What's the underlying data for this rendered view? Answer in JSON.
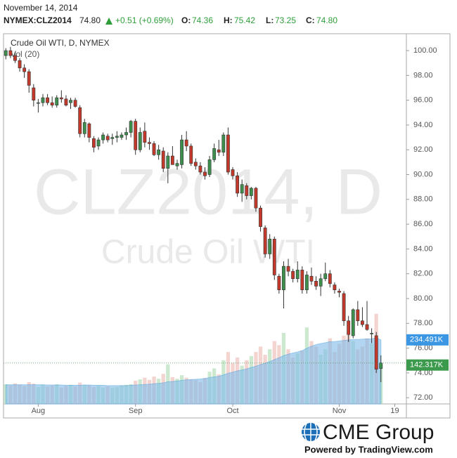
{
  "chart_data": {
    "type": "candlestick",
    "header": {
      "date": "November 14, 2014",
      "symbol": "NYMEX:CLZ2014",
      "last": "74.80",
      "change": "+0.51 (+0.69%)",
      "ohlc": [
        {
          "label": "O:",
          "value": "74.36"
        },
        {
          "label": "H:",
          "value": "75.42"
        },
        {
          "label": "L:",
          "value": "73.25"
        },
        {
          "label": "C:",
          "value": "74.80"
        }
      ],
      "value_color": "#2e9e3a"
    },
    "title": "Crude Oil WTI, D, NYMEX",
    "watermark": [
      "CLZ2014, D",
      "Crude Oil WTI"
    ],
    "logo": {
      "brand": "CME Group",
      "powered": "Powered by TradingView.com"
    },
    "categories": [
      null,
      null,
      null,
      null,
      null,
      null,
      null,
      "Aug",
      null,
      null,
      null,
      null,
      null,
      null,
      null,
      null,
      null,
      null,
      null,
      null,
      null,
      null,
      null,
      null,
      null,
      null,
      null,
      null,
      "Sep",
      null,
      null,
      null,
      null,
      null,
      null,
      null,
      null,
      null,
      null,
      null,
      null,
      null,
      null,
      null,
      null,
      null,
      null,
      null,
      null,
      "Oct",
      null,
      null,
      null,
      null,
      null,
      null,
      null,
      null,
      null,
      null,
      null,
      null,
      null,
      null,
      null,
      null,
      null,
      null,
      null,
      null,
      null,
      null,
      "Nov",
      null,
      null,
      null,
      null,
      null,
      null,
      null,
      null,
      null,
      null,
      null,
      "19",
      null,
      null
    ],
    "open": [
      99.6,
      100.0,
      99.6,
      99.2,
      98.6,
      98.3,
      97.0,
      95.8,
      95.8,
      96.2,
      95.8,
      95.6,
      96.2,
      96.1,
      95.8,
      96.0,
      95.4,
      93.3,
      94.1,
      92.9,
      92.3,
      92.8,
      93.1,
      92.9,
      93.0,
      93.0,
      93.2,
      93.4,
      94.3,
      92.0,
      93.5,
      92.6,
      92.5,
      91.6,
      91.9,
      90.5,
      91.5,
      90.7,
      90.8,
      92.8,
      92.3,
      91.0,
      90.7,
      90.2,
      90.0,
      91.2,
      92.0,
      91.8,
      93.2,
      90.4,
      89.9,
      88.5,
      89.1,
      88.3,
      88.9,
      87.3,
      85.7,
      83.6,
      84.8,
      81.8,
      80.7,
      82.6,
      82.2,
      81.6,
      82.3,
      80.7,
      81.8,
      81.4,
      81.0,
      81.6,
      82.0,
      81.1,
      80.6,
      80.4,
      78.2,
      77.0,
      79.1,
      78.2,
      77.9,
      77.2,
      77.0,
      74.36,
      null,
      null,
      null,
      null,
      null
    ],
    "high": [
      100.2,
      100.3,
      99.9,
      99.4,
      98.9,
      98.5,
      97.3,
      96.1,
      96.5,
      96.5,
      96.3,
      96.4,
      96.8,
      96.4,
      96.2,
      96.2,
      95.6,
      94.5,
      94.2,
      93.1,
      93.0,
      93.4,
      93.3,
      93.3,
      93.5,
      93.4,
      93.8,
      94.4,
      94.5,
      93.8,
      94.2,
      93.0,
      92.7,
      92.4,
      92.2,
      91.8,
      92.3,
      91.2,
      93.2,
      93.5,
      92.5,
      91.3,
      91.0,
      90.6,
      91.5,
      92.5,
      92.8,
      93.4,
      93.8,
      90.6,
      90.2,
      89.6,
      89.3,
      89.0,
      89.0,
      87.5,
      85.9,
      85.2,
      85.0,
      82.0,
      83.0,
      83.2,
      82.4,
      83.0,
      82.6,
      82.2,
      82.5,
      81.8,
      82.0,
      82.9,
      82.3,
      81.3,
      80.8,
      80.6,
      78.6,
      79.2,
      79.8,
      79.3,
      79.8,
      77.6,
      77.3,
      75.42,
      null,
      null,
      null,
      null,
      null
    ],
    "low": [
      99.3,
      99.4,
      99.0,
      98.3,
      97.8,
      96.6,
      95.5,
      95.0,
      95.5,
      95.6,
      95.4,
      95.4,
      95.8,
      95.5,
      95.3,
      95.4,
      93.0,
      93.0,
      92.6,
      91.8,
      92.0,
      92.5,
      92.6,
      92.4,
      92.6,
      92.8,
      92.8,
      93.0,
      91.6,
      91.8,
      92.2,
      92.0,
      91.5,
      91.2,
      90.2,
      89.3,
      90.8,
      90.4,
      90.5,
      91.9,
      90.7,
      90.4,
      90.0,
      89.6,
      89.8,
      91.0,
      91.5,
      91.5,
      90.0,
      89.6,
      88.2,
      87.8,
      88.0,
      88.0,
      87.0,
      85.4,
      83.3,
      83.2,
      81.5,
      80.4,
      79.2,
      81.8,
      81.3,
      81.3,
      80.4,
      80.4,
      81.1,
      80.7,
      80.2,
      81.4,
      80.9,
      80.4,
      80.1,
      77.8,
      76.5,
      76.8,
      77.8,
      77.7,
      77.4,
      76.4,
      74.0,
      73.25,
      null,
      null,
      null,
      null,
      null
    ],
    "close": [
      100.0,
      99.6,
      99.2,
      98.6,
      98.3,
      97.2,
      96.0,
      95.8,
      96.2,
      95.8,
      95.6,
      96.2,
      96.1,
      95.6,
      96.0,
      95.5,
      93.3,
      94.2,
      93.0,
      92.2,
      92.8,
      93.2,
      92.8,
      93.0,
      93.1,
      93.2,
      93.4,
      94.3,
      92.0,
      93.4,
      92.6,
      92.5,
      91.6,
      92.0,
      90.5,
      91.5,
      90.8,
      90.9,
      92.8,
      92.3,
      90.9,
      90.7,
      90.2,
      89.9,
      91.2,
      92.1,
      91.8,
      93.2,
      90.2,
      89.9,
      88.5,
      89.2,
      88.3,
      88.9,
      87.3,
      85.8,
      83.6,
      84.8,
      81.9,
      80.7,
      82.6,
      82.2,
      81.6,
      82.3,
      80.7,
      81.9,
      81.4,
      81.0,
      81.6,
      82.0,
      81.2,
      80.7,
      80.5,
      78.2,
      77.1,
      79.1,
      78.2,
      77.9,
      77.5,
      77.2,
      74.3,
      74.8,
      null,
      null,
      null,
      null,
      null
    ],
    "up_color": "#3d8f4e",
    "down_color": "#c2392b",
    "ylim": [
      71.5,
      101.25
    ],
    "yticks": [
      {
        "value": 72,
        "label": "72.00"
      },
      {
        "value": 74,
        "label": "74.00"
      },
      {
        "value": 76,
        "label": "76.00"
      },
      {
        "value": 78,
        "label": "78.00"
      },
      {
        "value": 80,
        "label": "80.00"
      },
      {
        "value": 82,
        "label": "82.00"
      },
      {
        "value": 84,
        "label": "84.00"
      },
      {
        "value": 86,
        "label": "86.00"
      },
      {
        "value": 88,
        "label": "88.00"
      },
      {
        "value": 90,
        "label": "90.00"
      },
      {
        "value": 92,
        "label": "92.00"
      },
      {
        "value": 94,
        "label": "94.00"
      },
      {
        "value": 96,
        "label": "96.00"
      },
      {
        "value": 98,
        "label": "98.00"
      },
      {
        "value": 100,
        "label": "100.00"
      }
    ],
    "volume": {
      "name": "Vol (20)",
      "ylim": [
        0,
        1350
      ],
      "up_color": "#bfe3c3",
      "down_color": "#f0c9c4",
      "ma_color": "#7fbbe9",
      "values": [
        72,
        68,
        75,
        70,
        66,
        80,
        74,
        62,
        70,
        64,
        68,
        72,
        60,
        66,
        70,
        64,
        78,
        70,
        68,
        62,
        66,
        60,
        64,
        58,
        62,
        68,
        70,
        72,
        85,
        90,
        96,
        88,
        100,
        92,
        110,
        145,
        98,
        92,
        105,
        96,
        90,
        88,
        80,
        95,
        118,
        130,
        108,
        160,
        190,
        150,
        170,
        140,
        160,
        175,
        190,
        210,
        180,
        200,
        230,
        215,
        260,
        200,
        170,
        185,
        195,
        280,
        230,
        210,
        180,
        200,
        240,
        190,
        220,
        250,
        260,
        230,
        200,
        210,
        240,
        220,
        330,
        142.317,
        null,
        null,
        null,
        null,
        null
      ],
      "ma": [
        70,
        70,
        70,
        70,
        70,
        70,
        70,
        70,
        70,
        69,
        69,
        69,
        69,
        68,
        68,
        68,
        68,
        69,
        69,
        68,
        68,
        68,
        67,
        67,
        67,
        67,
        67,
        68,
        69,
        70,
        71,
        72,
        74,
        75,
        77,
        81,
        82,
        84,
        86,
        88,
        89,
        90,
        91,
        93,
        96,
        99,
        101,
        106,
        112,
        116,
        121,
        124,
        128,
        133,
        138,
        144,
        149,
        155,
        162,
        169,
        177,
        182,
        186,
        190,
        195,
        204,
        211,
        217,
        221,
        224,
        228,
        228,
        230,
        232,
        234,
        236,
        236,
        237,
        238,
        238,
        242,
        234.491,
        null,
        null,
        null,
        null,
        null
      ],
      "tags": [
        {
          "value": 234.491,
          "label": "234.491K",
          "color": "#3b97e3"
        },
        {
          "value": 142.317,
          "label": "142.317K",
          "color": "#3c9a4c"
        }
      ]
    }
  }
}
